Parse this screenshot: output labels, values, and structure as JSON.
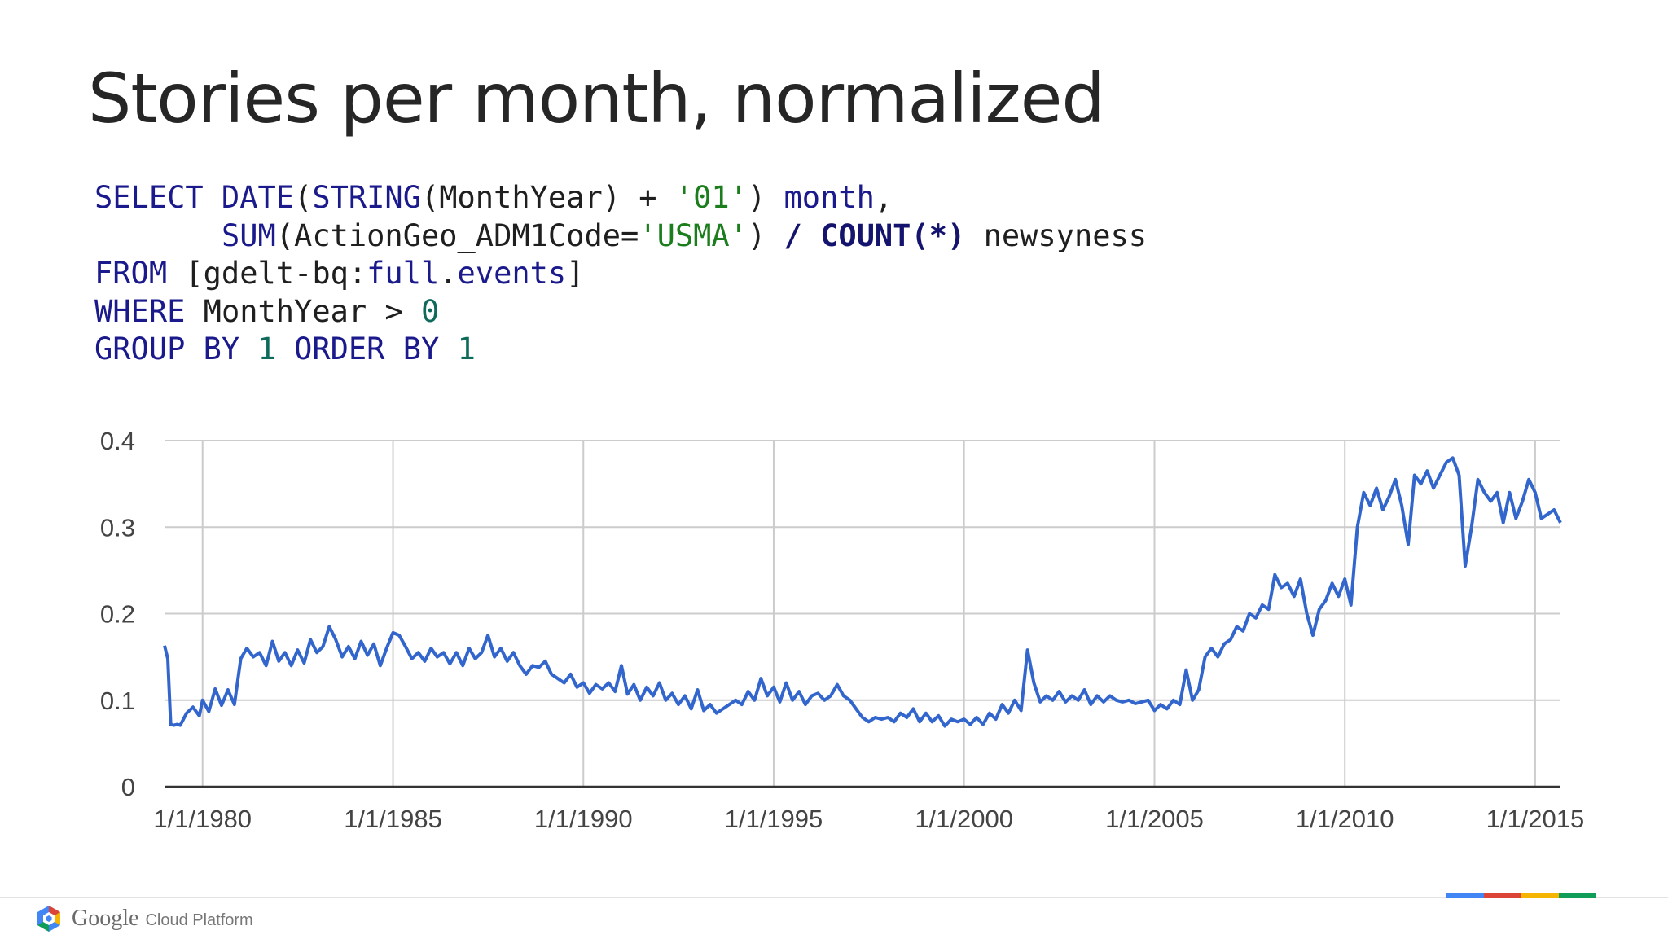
{
  "title": "Stories per month, normalized",
  "sql": {
    "line1": [
      {
        "t": "SELECT DATE",
        "c": "kw"
      },
      {
        "t": "(",
        "c": "plain"
      },
      {
        "t": "STRING",
        "c": "kw"
      },
      {
        "t": "(MonthYear) + ",
        "c": "plain"
      },
      {
        "t": "'01'",
        "c": "str"
      },
      {
        "t": ") ",
        "c": "plain"
      },
      {
        "t": "month",
        "c": "kw"
      },
      {
        "t": ",",
        "c": "plain"
      }
    ],
    "line2": [
      {
        "t": "       ",
        "c": "plain"
      },
      {
        "t": "SUM",
        "c": "kw"
      },
      {
        "t": "(ActionGeo_ADM1Code=",
        "c": "plain"
      },
      {
        "t": "'USMA'",
        "c": "str"
      },
      {
        "t": ") ",
        "c": "plain"
      },
      {
        "t": "/",
        "c": "op"
      },
      {
        "t": " ",
        "c": "plain"
      },
      {
        "t": "COUNT",
        "c": "kwb"
      },
      {
        "t": "(*)",
        "c": "op"
      },
      {
        "t": " newsyness",
        "c": "plain"
      }
    ],
    "line3": [
      {
        "t": "FROM",
        "c": "kw"
      },
      {
        "t": " [gdelt-bq:",
        "c": "plain"
      },
      {
        "t": "full",
        "c": "kw"
      },
      {
        "t": ".",
        "c": "plain"
      },
      {
        "t": "events",
        "c": "kw"
      },
      {
        "t": "]",
        "c": "plain"
      }
    ],
    "line4": [
      {
        "t": "WHERE",
        "c": "kw"
      },
      {
        "t": " MonthYear > ",
        "c": "plain"
      },
      {
        "t": "0",
        "c": "num"
      }
    ],
    "line5": [
      {
        "t": "GROUP BY",
        "c": "kw"
      },
      {
        "t": " ",
        "c": "plain"
      },
      {
        "t": "1",
        "c": "num"
      },
      {
        "t": " ",
        "c": "plain"
      },
      {
        "t": "ORDER BY",
        "c": "kw"
      },
      {
        "t": " ",
        "c": "plain"
      },
      {
        "t": "1",
        "c": "num"
      }
    ]
  },
  "chart_data": {
    "type": "line",
    "title": "",
    "xlabel": "",
    "ylabel": "",
    "xlim": [
      "1979-01-01",
      "2015-09-01"
    ],
    "ylim": [
      0,
      0.4
    ],
    "yticks": [
      0,
      0.1,
      0.2,
      0.3,
      0.4
    ],
    "ytick_labels": [
      "0",
      "0.1",
      "0.2",
      "0.3",
      "0.4"
    ],
    "xticks": [
      "1980-01-01",
      "1985-01-01",
      "1990-01-01",
      "1995-01-01",
      "2000-01-01",
      "2005-01-01",
      "2010-01-01",
      "2015-01-01"
    ],
    "xtick_labels": [
      "1/1/1980",
      "1/1/1985",
      "1/1/1990",
      "1/1/1995",
      "1/1/2000",
      "1/1/2005",
      "1/1/2010",
      "1/1/2015"
    ],
    "grid": true,
    "legend": "none",
    "series": [
      {
        "color": "#3366cc",
        "points": [
          [
            "1979-01-01",
            0.163
          ],
          [
            "1979-02-01",
            0.148
          ],
          [
            "1979-03-01",
            0.072
          ],
          [
            "1979-04-01",
            0.071
          ],
          [
            "1979-05-01",
            0.072
          ],
          [
            "1979-06-01",
            0.071
          ],
          [
            "1979-08-01",
            0.085
          ],
          [
            "1979-10-01",
            0.092
          ],
          [
            "1979-12-01",
            0.082
          ],
          [
            "1980-01-01",
            0.1
          ],
          [
            "1980-03-01",
            0.087
          ],
          [
            "1980-05-01",
            0.113
          ],
          [
            "1980-07-01",
            0.094
          ],
          [
            "1980-09-01",
            0.112
          ],
          [
            "1980-11-01",
            0.095
          ],
          [
            "1981-01-01",
            0.148
          ],
          [
            "1981-03-01",
            0.16
          ],
          [
            "1981-05-01",
            0.15
          ],
          [
            "1981-07-01",
            0.155
          ],
          [
            "1981-09-01",
            0.14
          ],
          [
            "1981-11-01",
            0.168
          ],
          [
            "1982-01-01",
            0.145
          ],
          [
            "1982-03-01",
            0.155
          ],
          [
            "1982-05-01",
            0.14
          ],
          [
            "1982-07-01",
            0.158
          ],
          [
            "1982-09-01",
            0.143
          ],
          [
            "1982-11-01",
            0.17
          ],
          [
            "1983-01-01",
            0.155
          ],
          [
            "1983-03-01",
            0.162
          ],
          [
            "1983-05-01",
            0.185
          ],
          [
            "1983-07-01",
            0.17
          ],
          [
            "1983-09-01",
            0.15
          ],
          [
            "1983-11-01",
            0.162
          ],
          [
            "1984-01-01",
            0.148
          ],
          [
            "1984-03-01",
            0.168
          ],
          [
            "1984-05-01",
            0.152
          ],
          [
            "1984-07-01",
            0.165
          ],
          [
            "1984-09-01",
            0.14
          ],
          [
            "1984-11-01",
            0.16
          ],
          [
            "1985-01-01",
            0.178
          ],
          [
            "1985-03-01",
            0.175
          ],
          [
            "1985-05-01",
            0.162
          ],
          [
            "1985-07-01",
            0.148
          ],
          [
            "1985-09-01",
            0.155
          ],
          [
            "1985-11-01",
            0.145
          ],
          [
            "1986-01-01",
            0.16
          ],
          [
            "1986-03-01",
            0.15
          ],
          [
            "1986-05-01",
            0.155
          ],
          [
            "1986-07-01",
            0.142
          ],
          [
            "1986-09-01",
            0.155
          ],
          [
            "1986-11-01",
            0.14
          ],
          [
            "1987-01-01",
            0.16
          ],
          [
            "1987-03-01",
            0.148
          ],
          [
            "1987-05-01",
            0.155
          ],
          [
            "1987-07-01",
            0.175
          ],
          [
            "1987-09-01",
            0.15
          ],
          [
            "1987-11-01",
            0.16
          ],
          [
            "1988-01-01",
            0.145
          ],
          [
            "1988-03-01",
            0.155
          ],
          [
            "1988-05-01",
            0.14
          ],
          [
            "1988-07-01",
            0.13
          ],
          [
            "1988-09-01",
            0.14
          ],
          [
            "1988-11-01",
            0.138
          ],
          [
            "1989-01-01",
            0.145
          ],
          [
            "1989-03-01",
            0.13
          ],
          [
            "1989-05-01",
            0.125
          ],
          [
            "1989-07-01",
            0.12
          ],
          [
            "1989-09-01",
            0.13
          ],
          [
            "1989-11-01",
            0.115
          ],
          [
            "1990-01-01",
            0.12
          ],
          [
            "1990-03-01",
            0.108
          ],
          [
            "1990-05-01",
            0.118
          ],
          [
            "1990-07-01",
            0.113
          ],
          [
            "1990-09-01",
            0.12
          ],
          [
            "1990-11-01",
            0.11
          ],
          [
            "1991-01-01",
            0.14
          ],
          [
            "1991-03-01",
            0.107
          ],
          [
            "1991-05-01",
            0.118
          ],
          [
            "1991-07-01",
            0.1
          ],
          [
            "1991-09-01",
            0.115
          ],
          [
            "1991-11-01",
            0.105
          ],
          [
            "1992-01-01",
            0.12
          ],
          [
            "1992-03-01",
            0.1
          ],
          [
            "1992-05-01",
            0.108
          ],
          [
            "1992-07-01",
            0.095
          ],
          [
            "1992-09-01",
            0.105
          ],
          [
            "1992-11-01",
            0.09
          ],
          [
            "1993-01-01",
            0.112
          ],
          [
            "1993-03-01",
            0.088
          ],
          [
            "1993-05-01",
            0.095
          ],
          [
            "1993-07-01",
            0.085
          ],
          [
            "1993-09-01",
            0.09
          ],
          [
            "1993-11-01",
            0.095
          ],
          [
            "1994-01-01",
            0.1
          ],
          [
            "1994-03-01",
            0.095
          ],
          [
            "1994-05-01",
            0.11
          ],
          [
            "1994-07-01",
            0.1
          ],
          [
            "1994-09-01",
            0.125
          ],
          [
            "1994-11-01",
            0.105
          ],
          [
            "1995-01-01",
            0.115
          ],
          [
            "1995-03-01",
            0.098
          ],
          [
            "1995-05-01",
            0.12
          ],
          [
            "1995-07-01",
            0.1
          ],
          [
            "1995-09-01",
            0.11
          ],
          [
            "1995-11-01",
            0.095
          ],
          [
            "1996-01-01",
            0.105
          ],
          [
            "1996-03-01",
            0.108
          ],
          [
            "1996-05-01",
            0.1
          ],
          [
            "1996-07-01",
            0.105
          ],
          [
            "1996-09-01",
            0.118
          ],
          [
            "1996-11-01",
            0.105
          ],
          [
            "1997-01-01",
            0.1
          ],
          [
            "1997-03-01",
            0.09
          ],
          [
            "1997-05-01",
            0.08
          ],
          [
            "1997-07-01",
            0.075
          ],
          [
            "1997-09-01",
            0.08
          ],
          [
            "1997-11-01",
            0.078
          ],
          [
            "1998-01-01",
            0.08
          ],
          [
            "1998-03-01",
            0.075
          ],
          [
            "1998-05-01",
            0.085
          ],
          [
            "1998-07-01",
            0.08
          ],
          [
            "1998-09-01",
            0.09
          ],
          [
            "1998-11-01",
            0.075
          ],
          [
            "1999-01-01",
            0.085
          ],
          [
            "1999-03-01",
            0.075
          ],
          [
            "1999-05-01",
            0.082
          ],
          [
            "1999-07-01",
            0.07
          ],
          [
            "1999-09-01",
            0.078
          ],
          [
            "1999-11-01",
            0.075
          ],
          [
            "2000-01-01",
            0.078
          ],
          [
            "2000-03-01",
            0.072
          ],
          [
            "2000-05-01",
            0.08
          ],
          [
            "2000-07-01",
            0.072
          ],
          [
            "2000-09-01",
            0.085
          ],
          [
            "2000-11-01",
            0.078
          ],
          [
            "2001-01-01",
            0.095
          ],
          [
            "2001-03-01",
            0.085
          ],
          [
            "2001-05-01",
            0.1
          ],
          [
            "2001-07-01",
            0.088
          ],
          [
            "2001-09-01",
            0.158
          ],
          [
            "2001-11-01",
            0.12
          ],
          [
            "2002-01-01",
            0.098
          ],
          [
            "2002-03-01",
            0.105
          ],
          [
            "2002-05-01",
            0.1
          ],
          [
            "2002-07-01",
            0.11
          ],
          [
            "2002-09-01",
            0.098
          ],
          [
            "2002-11-01",
            0.105
          ],
          [
            "2003-01-01",
            0.1
          ],
          [
            "2003-03-01",
            0.112
          ],
          [
            "2003-05-01",
            0.095
          ],
          [
            "2003-07-01",
            0.105
          ],
          [
            "2003-09-01",
            0.098
          ],
          [
            "2003-11-01",
            0.105
          ],
          [
            "2004-01-01",
            0.1
          ],
          [
            "2004-03-01",
            0.098
          ],
          [
            "2004-05-01",
            0.1
          ],
          [
            "2004-07-01",
            0.096
          ],
          [
            "2004-09-01",
            0.098
          ],
          [
            "2004-11-01",
            0.1
          ],
          [
            "2005-01-01",
            0.088
          ],
          [
            "2005-03-01",
            0.095
          ],
          [
            "2005-05-01",
            0.09
          ],
          [
            "2005-07-01",
            0.1
          ],
          [
            "2005-09-01",
            0.095
          ],
          [
            "2005-11-01",
            0.135
          ],
          [
            "2006-01-01",
            0.1
          ],
          [
            "2006-03-01",
            0.112
          ],
          [
            "2006-05-01",
            0.15
          ],
          [
            "2006-07-01",
            0.16
          ],
          [
            "2006-09-01",
            0.15
          ],
          [
            "2006-11-01",
            0.165
          ],
          [
            "2007-01-01",
            0.17
          ],
          [
            "2007-03-01",
            0.185
          ],
          [
            "2007-05-01",
            0.18
          ],
          [
            "2007-07-01",
            0.2
          ],
          [
            "2007-09-01",
            0.195
          ],
          [
            "2007-11-01",
            0.21
          ],
          [
            "2008-01-01",
            0.205
          ],
          [
            "2008-03-01",
            0.245
          ],
          [
            "2008-05-01",
            0.23
          ],
          [
            "2008-07-01",
            0.235
          ],
          [
            "2008-09-01",
            0.22
          ],
          [
            "2008-11-01",
            0.24
          ],
          [
            "2009-01-01",
            0.2
          ],
          [
            "2009-03-01",
            0.175
          ],
          [
            "2009-05-01",
            0.205
          ],
          [
            "2009-07-01",
            0.215
          ],
          [
            "2009-09-01",
            0.235
          ],
          [
            "2009-11-01",
            0.22
          ],
          [
            "2010-01-01",
            0.24
          ],
          [
            "2010-03-01",
            0.21
          ],
          [
            "2010-05-01",
            0.3
          ],
          [
            "2010-07-01",
            0.34
          ],
          [
            "2010-09-01",
            0.325
          ],
          [
            "2010-11-01",
            0.345
          ],
          [
            "2011-01-01",
            0.32
          ],
          [
            "2011-03-01",
            0.335
          ],
          [
            "2011-05-01",
            0.355
          ],
          [
            "2011-07-01",
            0.325
          ],
          [
            "2011-09-01",
            0.28
          ],
          [
            "2011-11-01",
            0.36
          ],
          [
            "2012-01-01",
            0.35
          ],
          [
            "2012-03-01",
            0.365
          ],
          [
            "2012-05-01",
            0.345
          ],
          [
            "2012-07-01",
            0.36
          ],
          [
            "2012-09-01",
            0.375
          ],
          [
            "2012-11-01",
            0.38
          ],
          [
            "2013-01-01",
            0.36
          ],
          [
            "2013-03-01",
            0.255
          ],
          [
            "2013-05-01",
            0.3
          ],
          [
            "2013-07-01",
            0.355
          ],
          [
            "2013-09-01",
            0.34
          ],
          [
            "2013-11-01",
            0.33
          ],
          [
            "2014-01-01",
            0.34
          ],
          [
            "2014-03-01",
            0.305
          ],
          [
            "2014-05-01",
            0.34
          ],
          [
            "2014-07-01",
            0.31
          ],
          [
            "2014-09-01",
            0.33
          ],
          [
            "2014-11-01",
            0.355
          ],
          [
            "2015-01-01",
            0.34
          ],
          [
            "2015-03-01",
            0.31
          ],
          [
            "2015-05-01",
            0.315
          ],
          [
            "2015-07-01",
            0.32
          ],
          [
            "2015-09-01",
            0.305
          ]
        ]
      }
    ]
  },
  "footer": {
    "brand_google": "Google",
    "brand_product": "Cloud Platform",
    "bar_colors": [
      "#4285f4",
      "#db4437",
      "#f4b400",
      "#0f9d58"
    ]
  }
}
